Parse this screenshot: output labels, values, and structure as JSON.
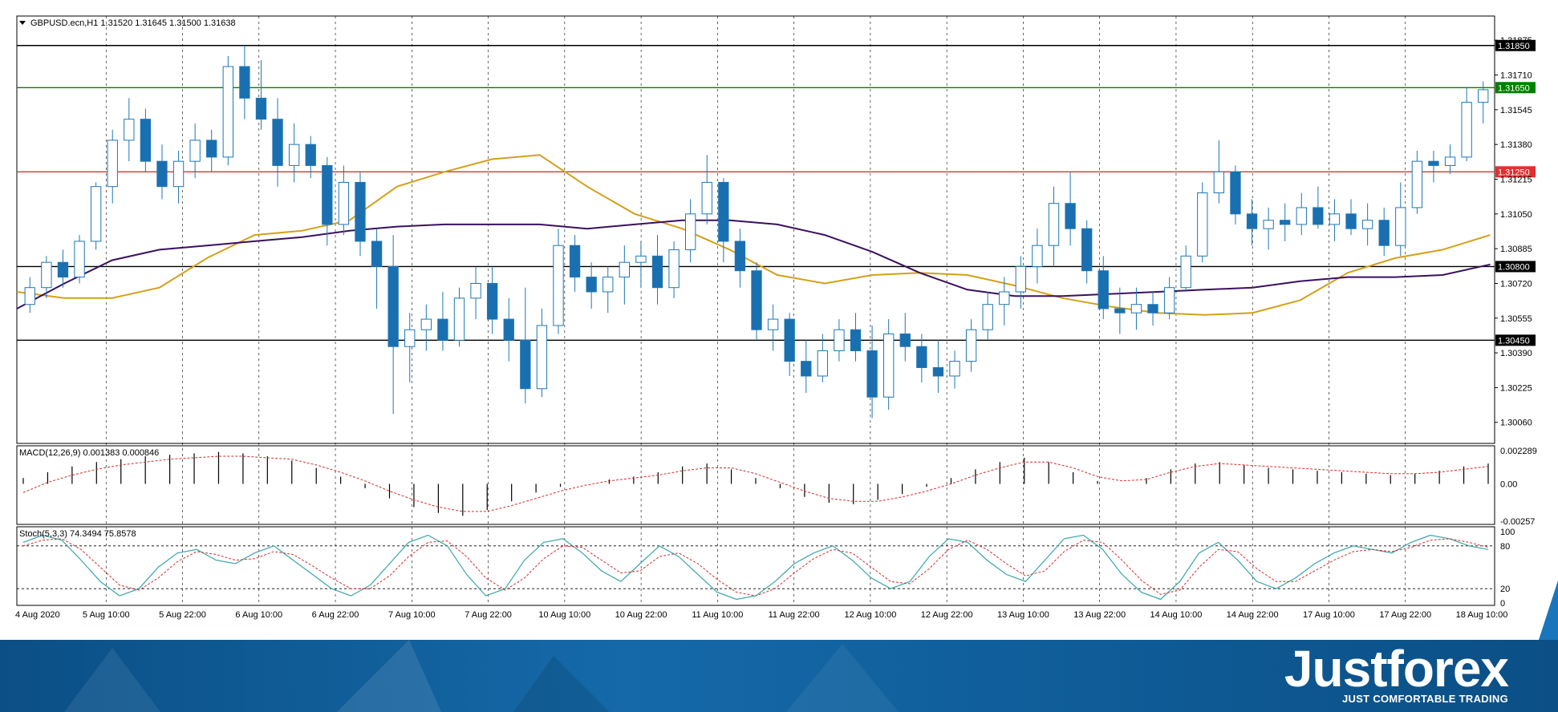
{
  "chart_data": {
    "type": "candlestick",
    "symbol_header": "GBPUSD.ecn,H1  1.31520 1.31645 1.31500 1.31638",
    "price_axis": {
      "ticks": [
        "1.31875",
        "1.31710",
        "1.31545",
        "1.31380",
        "1.31215",
        "1.31050",
        "1.30885",
        "1.30720",
        "1.30555",
        "1.30390",
        "1.30225",
        "1.30060"
      ],
      "range": [
        1.2996,
        1.3199
      ]
    },
    "levels": [
      {
        "value": 1.3185,
        "label": "1.31850",
        "color": "#000000"
      },
      {
        "value": 1.3165,
        "label": "1.31650",
        "color": "#008000"
      },
      {
        "value": 1.3125,
        "label": "1.31250",
        "color": "#e03030"
      },
      {
        "value": 1.308,
        "label": "1.30800",
        "color": "#000000"
      },
      {
        "value": 1.3045,
        "label": "1.30450",
        "color": "#000000"
      }
    ],
    "time_labels": [
      "4 Aug 2020",
      "5 Aug 10:00",
      "5 Aug 22:00",
      "6 Aug 10:00",
      "6 Aug 22:00",
      "7 Aug 10:00",
      "7 Aug 22:00",
      "10 Aug 10:00",
      "10 Aug 22:00",
      "11 Aug 10:00",
      "11 Aug 22:00",
      "12 Aug 10:00",
      "12 Aug 22:00",
      "13 Aug 10:00",
      "13 Aug 22:00",
      "14 Aug 10:00",
      "14 Aug 22:00",
      "17 Aug 10:00",
      "17 Aug 22:00",
      "18 Aug 10:00"
    ],
    "series": [
      {
        "name": "MA fast",
        "color": "#d4a017",
        "values": [
          1.3068,
          1.3065,
          1.3065,
          1.307,
          1.3084,
          1.3095,
          1.3097,
          1.3102,
          1.3118,
          1.3125,
          1.3131,
          1.3133,
          1.3118,
          1.3105,
          1.3098,
          1.3088,
          1.3076,
          1.3072,
          1.3076,
          1.3077,
          1.3076,
          1.3071,
          1.3065,
          1.3061,
          1.3058,
          1.3057,
          1.3058,
          1.3064,
          1.3077,
          1.3084,
          1.3088,
          1.3095
        ]
      },
      {
        "name": "MA slow",
        "color": "#3a1060",
        "values": [
          1.306,
          1.3072,
          1.3083,
          1.3088,
          1.309,
          1.3092,
          1.3094,
          1.3097,
          1.3099,
          1.31,
          1.31,
          1.31,
          1.3098,
          1.31,
          1.3102,
          1.3102,
          1.31,
          1.3095,
          1.3087,
          1.3077,
          1.3069,
          1.3066,
          1.3066,
          1.3067,
          1.3068,
          1.3069,
          1.307,
          1.3073,
          1.3075,
          1.3075,
          1.3076,
          1.3081
        ]
      }
    ],
    "candles": [
      [
        1.3062,
        1.3075,
        1.3058,
        1.307
      ],
      [
        1.307,
        1.3085,
        1.3065,
        1.3082
      ],
      [
        1.3082,
        1.3088,
        1.307,
        1.3075
      ],
      [
        1.3075,
        1.3095,
        1.3072,
        1.3092
      ],
      [
        1.3092,
        1.312,
        1.3088,
        1.3118
      ],
      [
        1.3118,
        1.3145,
        1.311,
        1.314
      ],
      [
        1.314,
        1.316,
        1.313,
        1.315
      ],
      [
        1.315,
        1.3155,
        1.3125,
        1.313
      ],
      [
        1.313,
        1.3138,
        1.3112,
        1.3118
      ],
      [
        1.3118,
        1.3135,
        1.311,
        1.313
      ],
      [
        1.313,
        1.3148,
        1.3122,
        1.314
      ],
      [
        1.314,
        1.3145,
        1.3125,
        1.3132
      ],
      [
        1.3132,
        1.318,
        1.3128,
        1.3175
      ],
      [
        1.3175,
        1.3185,
        1.315,
        1.316
      ],
      [
        1.316,
        1.3178,
        1.3145,
        1.315
      ],
      [
        1.315,
        1.316,
        1.3118,
        1.3128
      ],
      [
        1.3128,
        1.3148,
        1.312,
        1.3138
      ],
      [
        1.3138,
        1.3142,
        1.3122,
        1.3128
      ],
      [
        1.3128,
        1.3132,
        1.309,
        1.31
      ],
      [
        1.31,
        1.3128,
        1.3095,
        1.312
      ],
      [
        1.312,
        1.3125,
        1.3085,
        1.3092
      ],
      [
        1.3092,
        1.3098,
        1.306,
        1.308
      ],
      [
        1.308,
        1.3095,
        1.301,
        1.3042
      ],
      [
        1.3042,
        1.3058,
        1.3025,
        1.305
      ],
      [
        1.305,
        1.3062,
        1.304,
        1.3055
      ],
      [
        1.3055,
        1.3068,
        1.304,
        1.3045
      ],
      [
        1.3045,
        1.307,
        1.3042,
        1.3065
      ],
      [
        1.3065,
        1.308,
        1.3055,
        1.3072
      ],
      [
        1.3072,
        1.308,
        1.3048,
        1.3055
      ],
      [
        1.3055,
        1.3065,
        1.3035,
        1.3045
      ],
      [
        1.3045,
        1.307,
        1.3015,
        1.3022
      ],
      [
        1.3022,
        1.306,
        1.3018,
        1.3052
      ],
      [
        1.3052,
        1.3098,
        1.3048,
        1.309
      ],
      [
        1.309,
        1.3095,
        1.3068,
        1.3075
      ],
      [
        1.3075,
        1.3082,
        1.306,
        1.3068
      ],
      [
        1.3068,
        1.308,
        1.3058,
        1.3075
      ],
      [
        1.3075,
        1.309,
        1.3062,
        1.3082
      ],
      [
        1.3082,
        1.3092,
        1.307,
        1.3085
      ],
      [
        1.3085,
        1.3095,
        1.3062,
        1.307
      ],
      [
        1.307,
        1.3092,
        1.3065,
        1.3088
      ],
      [
        1.3088,
        1.3112,
        1.3082,
        1.3105
      ],
      [
        1.3105,
        1.3133,
        1.31,
        1.312
      ],
      [
        1.312,
        1.3122,
        1.3082,
        1.3092
      ],
      [
        1.3092,
        1.3098,
        1.307,
        1.3078
      ],
      [
        1.3078,
        1.3082,
        1.3045,
        1.305
      ],
      [
        1.305,
        1.3062,
        1.304,
        1.3055
      ],
      [
        1.3055,
        1.3058,
        1.3028,
        1.3035
      ],
      [
        1.3035,
        1.3045,
        1.302,
        1.3028
      ],
      [
        1.3028,
        1.3048,
        1.3025,
        1.304
      ],
      [
        1.304,
        1.3055,
        1.3035,
        1.305
      ],
      [
        1.305,
        1.3058,
        1.3035,
        1.304
      ],
      [
        1.304,
        1.3052,
        1.3008,
        1.3018
      ],
      [
        1.3018,
        1.3055,
        1.3012,
        1.3048
      ],
      [
        1.3048,
        1.3058,
        1.3035,
        1.3042
      ],
      [
        1.3042,
        1.3048,
        1.3025,
        1.3032
      ],
      [
        1.3032,
        1.3045,
        1.302,
        1.3028
      ],
      [
        1.3028,
        1.304,
        1.3022,
        1.3035
      ],
      [
        1.3035,
        1.3055,
        1.303,
        1.305
      ],
      [
        1.305,
        1.3068,
        1.3045,
        1.3062
      ],
      [
        1.3062,
        1.3075,
        1.3052,
        1.3068
      ],
      [
        1.3068,
        1.3085,
        1.306,
        1.308
      ],
      [
        1.308,
        1.3098,
        1.3072,
        1.309
      ],
      [
        1.309,
        1.3118,
        1.308,
        1.311
      ],
      [
        1.311,
        1.3125,
        1.309,
        1.3098
      ],
      [
        1.3098,
        1.3102,
        1.3072,
        1.3078
      ],
      [
        1.3078,
        1.3085,
        1.3055,
        1.306
      ],
      [
        1.306,
        1.307,
        1.3048,
        1.3058
      ],
      [
        1.3058,
        1.307,
        1.305,
        1.3062
      ],
      [
        1.3062,
        1.3068,
        1.3052,
        1.3058
      ],
      [
        1.3058,
        1.3075,
        1.3055,
        1.307
      ],
      [
        1.307,
        1.309,
        1.3068,
        1.3085
      ],
      [
        1.3085,
        1.312,
        1.3082,
        1.3115
      ],
      [
        1.3115,
        1.314,
        1.311,
        1.3125
      ],
      [
        1.3125,
        1.3128,
        1.31,
        1.3105
      ],
      [
        1.3105,
        1.3112,
        1.309,
        1.3098
      ],
      [
        1.3098,
        1.3108,
        1.3088,
        1.3102
      ],
      [
        1.3102,
        1.311,
        1.3092,
        1.31
      ],
      [
        1.31,
        1.3115,
        1.3095,
        1.3108
      ],
      [
        1.3108,
        1.3118,
        1.3098,
        1.31
      ],
      [
        1.31,
        1.3112,
        1.3092,
        1.3105
      ],
      [
        1.3105,
        1.3112,
        1.3095,
        1.3098
      ],
      [
        1.3098,
        1.311,
        1.309,
        1.3102
      ],
      [
        1.3102,
        1.3108,
        1.3085,
        1.309
      ],
      [
        1.309,
        1.312,
        1.3085,
        1.3108
      ],
      [
        1.3108,
        1.3135,
        1.3105,
        1.313
      ],
      [
        1.313,
        1.3135,
        1.312,
        1.3128
      ],
      [
        1.3128,
        1.3138,
        1.3124,
        1.3132
      ],
      [
        1.3132,
        1.3165,
        1.313,
        1.3158
      ],
      [
        1.3158,
        1.3168,
        1.3148,
        1.3164
      ]
    ],
    "macd": {
      "label": "MACD(12,26,9) 0.001383 0.000846",
      "ticks": [
        "0.002289",
        "0.00",
        "-0.00257"
      ],
      "range": [
        -0.00257,
        0.002289
      ],
      "histogram": [
        0.0004,
        0.0008,
        0.0012,
        0.0015,
        0.0017,
        0.0019,
        0.002,
        0.0021,
        0.0022,
        0.0021,
        0.0019,
        0.0016,
        0.0011,
        0.0005,
        -0.0003,
        -0.001,
        -0.0016,
        -0.002,
        -0.0022,
        -0.0018,
        -0.0012,
        -0.0006,
        -0.0002,
        0.0,
        0.0003,
        0.0005,
        0.0008,
        0.0012,
        0.0014,
        0.001,
        0.0004,
        -0.0003,
        -0.0009,
        -0.0013,
        -0.0014,
        -0.0011,
        -0.0007,
        -0.0002,
        0.0004,
        0.001,
        0.0015,
        0.0018,
        0.0015,
        0.0008,
        0.0002,
        0.0,
        0.0004,
        0.001,
        0.0014,
        0.0015,
        0.0013,
        0.0011,
        0.001,
        0.0009,
        0.0008,
        0.0007,
        0.0006,
        0.0007,
        0.0009,
        0.0012,
        0.0014
      ],
      "signal": [
        -0.0006,
        0.0001,
        0.0006,
        0.001,
        0.0013,
        0.0015,
        0.0017,
        0.0018,
        0.0019,
        0.0019,
        0.0018,
        0.0017,
        0.0013,
        0.0008,
        0.0002,
        -0.0005,
        -0.0011,
        -0.0016,
        -0.0019,
        -0.0019,
        -0.0015,
        -0.001,
        -0.0005,
        -0.0001,
        0.0002,
        0.0004,
        0.0006,
        0.0009,
        0.0011,
        0.0011,
        0.0007,
        0.0001,
        -0.0005,
        -0.001,
        -0.0012,
        -0.0012,
        -0.0009,
        -0.0005,
        0.0,
        0.0006,
        0.0011,
        0.0015,
        0.0015,
        0.0011,
        0.0005,
        0.0002,
        0.0003,
        0.0008,
        0.0012,
        0.0014,
        0.0013,
        0.0012,
        0.0011,
        0.001,
        0.0009,
        0.0008,
        0.0007,
        0.0007,
        0.0008,
        0.001,
        0.0012
      ]
    },
    "stoch": {
      "label": "Stoch(5,3,3) 74.3494 75.8578",
      "ticks": [
        "100",
        "80",
        "20",
        "0"
      ],
      "range": [
        0,
        100
      ],
      "main": [
        85,
        95,
        88,
        60,
        30,
        10,
        20,
        50,
        70,
        75,
        60,
        55,
        70,
        80,
        60,
        40,
        20,
        10,
        25,
        55,
        85,
        95,
        80,
        40,
        10,
        20,
        60,
        85,
        90,
        70,
        45,
        30,
        55,
        80,
        65,
        40,
        15,
        5,
        10,
        30,
        55,
        70,
        80,
        60,
        35,
        20,
        30,
        65,
        90,
        85,
        60,
        40,
        30,
        60,
        90,
        95,
        75,
        40,
        15,
        5,
        30,
        70,
        85,
        60,
        30,
        20,
        35,
        55,
        70,
        80,
        75,
        70,
        85,
        95,
        90,
        80,
        75
      ],
      "signal": [
        80,
        88,
        90,
        75,
        50,
        25,
        18,
        35,
        58,
        72,
        68,
        60,
        62,
        72,
        68,
        52,
        35,
        20,
        20,
        38,
        65,
        85,
        87,
        65,
        35,
        18,
        35,
        62,
        80,
        78,
        60,
        42,
        45,
        65,
        70,
        55,
        33,
        15,
        10,
        20,
        42,
        62,
        75,
        70,
        50,
        30,
        27,
        48,
        75,
        88,
        75,
        55,
        38,
        45,
        72,
        88,
        85,
        60,
        32,
        12,
        18,
        50,
        75,
        72,
        48,
        30,
        30,
        45,
        60,
        72,
        75,
        72,
        78,
        88,
        90,
        85,
        78
      ]
    }
  },
  "branding": {
    "name": "Justforex",
    "tagline": "JUST COMFORTABLE TRADING"
  }
}
